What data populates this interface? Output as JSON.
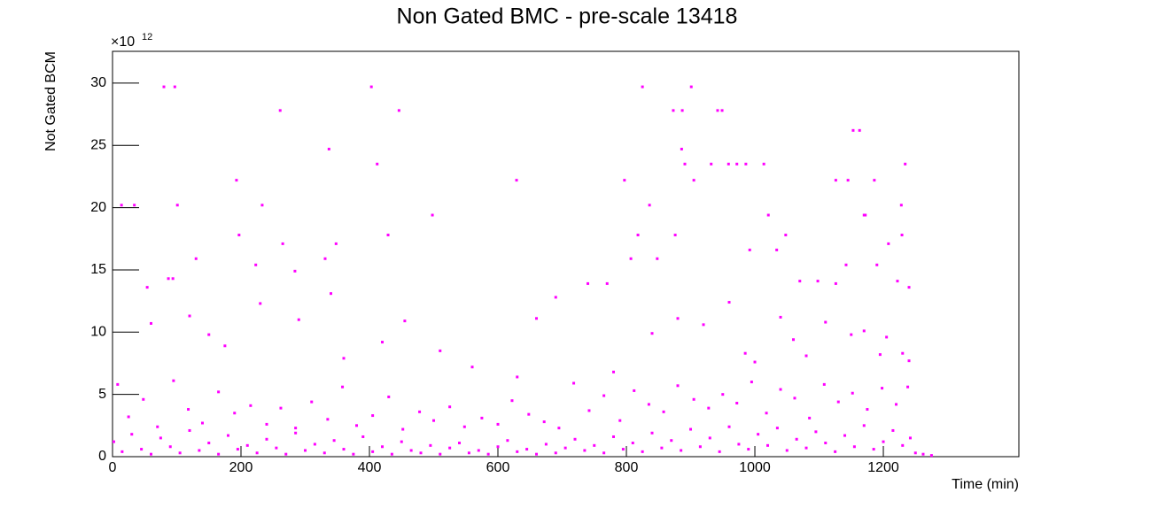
{
  "chart_data": {
    "type": "scatter",
    "title": "Non Gated BMC - pre-scale 13418",
    "x_label": "Time (min)",
    "y_label": "Not Gated BCM",
    "y_multiplier": {
      "base": "×10",
      "exponent": "12"
    },
    "xlim": [
      0,
      1411
    ],
    "xticks": [
      0,
      200,
      400,
      600,
      800,
      1000,
      1200
    ],
    "ylim": [
      0,
      32.55
    ],
    "yticks": [
      0,
      5,
      10,
      15,
      20,
      25,
      30
    ],
    "grid": false,
    "series": [
      {
        "color": "#ff00ff",
        "x": [
          80,
          97,
          403,
          825,
          901,
          261,
          446,
          873,
          887,
          942,
          949,
          1153,
          1163,
          337,
          886,
          412,
          932,
          891,
          959,
          972,
          986,
          1014,
          1234,
          193,
          629,
          797,
          905,
          1126,
          1186,
          1145,
          14,
          34,
          101,
          233,
          836,
          1228,
          1170,
          1172,
          1021,
          498,
          876,
          197,
          429,
          818,
          1208,
          265,
          348,
          1048,
          1229,
          992,
          1034,
          848,
          807,
          130,
          331,
          223,
          1142,
          1190,
          284,
          1070,
          1098,
          1126,
          1222,
          1240,
          54,
          87,
          94
        ],
        "values": [
          29.7,
          29.7,
          29.7,
          29.7,
          29.7,
          27.8,
          27.8,
          27.8,
          27.8,
          27.8,
          27.8,
          26.2,
          26.2,
          24.7,
          24.7,
          23.5,
          23.5,
          23.5,
          23.5,
          23.5,
          23.5,
          23.5,
          23.5,
          22.2,
          22.2,
          22.2,
          22.2,
          22.2,
          22.2,
          22.2,
          20.2,
          20.2,
          20.2,
          20.2,
          20.2,
          20.2,
          19.4,
          19.4,
          19.4,
          19.4,
          17.8,
          17.8,
          17.8,
          17.8,
          17.1,
          17.1,
          17.1,
          17.8,
          17.8,
          16.6,
          16.6,
          15.9,
          15.9,
          15.9,
          15.9,
          15.4,
          15.4,
          15.4,
          14.9,
          14.1,
          14.1,
          13.9,
          14.1,
          13.6,
          13.6,
          14.3,
          14.3
        ]
      },
      {
        "color": "#ff00ff",
        "x": [
          60,
          120,
          150,
          175,
          230,
          290,
          340,
          360,
          420,
          455,
          510,
          560,
          630,
          660,
          690,
          740,
          770,
          780,
          840,
          880,
          920,
          960,
          985,
          1000,
          1040,
          1060,
          1080,
          1110,
          1150,
          1170,
          1195,
          1205,
          1230,
          1240
        ],
        "values": [
          10.7,
          11.3,
          9.8,
          8.9,
          12.3,
          11.0,
          13.1,
          7.9,
          9.2,
          10.9,
          8.5,
          7.2,
          6.4,
          11.1,
          12.8,
          13.9,
          13.9,
          6.8,
          9.9,
          11.1,
          10.6,
          12.4,
          8.3,
          7.6,
          11.2,
          9.4,
          8.1,
          10.8,
          9.8,
          10.1,
          8.2,
          9.6,
          8.3,
          7.7
        ]
      },
      {
        "color": "#ff00ff",
        "x": [
          8,
          25,
          48,
          70,
          95,
          118,
          140,
          165,
          190,
          215,
          240,
          262,
          285,
          310,
          335,
          358,
          380,
          405,
          430,
          452,
          478,
          500,
          525,
          548,
          575,
          600,
          622,
          648,
          672,
          695,
          718,
          742,
          765,
          790,
          812,
          835,
          858,
          880,
          905,
          928,
          950,
          972,
          995,
          1018,
          1040,
          1062,
          1085,
          1108,
          1130,
          1152,
          1175,
          1198,
          1220,
          1238
        ],
        "values": [
          5.8,
          3.2,
          4.6,
          2.4,
          6.1,
          3.8,
          2.7,
          5.2,
          3.5,
          4.1,
          2.6,
          3.9,
          2.3,
          4.4,
          3.0,
          5.6,
          2.5,
          3.3,
          4.8,
          2.2,
          3.6,
          2.9,
          4.0,
          2.4,
          3.1,
          2.6,
          4.5,
          3.4,
          2.8,
          2.3,
          5.9,
          3.7,
          4.9,
          2.9,
          5.3,
          4.2,
          3.6,
          5.7,
          4.6,
          3.9,
          5.0,
          4.3,
          6.0,
          3.5,
          5.4,
          4.7,
          3.1,
          5.8,
          4.4,
          5.1,
          3.8,
          5.5,
          4.2,
          5.6
        ]
      },
      {
        "color": "#ff00ff",
        "x": [
          2,
          15,
          30,
          45,
          60,
          75,
          90,
          105,
          120,
          135,
          150,
          165,
          180,
          195,
          210,
          225,
          240,
          255,
          270,
          285,
          300,
          315,
          330,
          345,
          360,
          375,
          390,
          405,
          420,
          435,
          450,
          465,
          480,
          495,
          510,
          525,
          540,
          555,
          570,
          585,
          600,
          615,
          630,
          645,
          660,
          675,
          690,
          705,
          720,
          735,
          750,
          765,
          780,
          795,
          810,
          825,
          840,
          855,
          870,
          885,
          900,
          915,
          930,
          945,
          960,
          975,
          990,
          1005,
          1020,
          1035,
          1050,
          1065,
          1080,
          1095,
          1110,
          1125,
          1140,
          1155,
          1170,
          1185,
          1200,
          1215,
          1230,
          1242
        ],
        "values": [
          1.2,
          0.4,
          1.8,
          0.6,
          0.2,
          1.5,
          0.8,
          0.3,
          2.1,
          0.5,
          1.1,
          0.2,
          1.7,
          0.6,
          0.9,
          0.3,
          1.4,
          0.7,
          0.2,
          1.9,
          0.5,
          1.0,
          0.3,
          1.3,
          0.6,
          0.2,
          1.6,
          0.4,
          0.8,
          0.2,
          1.2,
          0.5,
          0.3,
          0.9,
          0.2,
          0.7,
          1.1,
          0.3,
          0.5,
          0.2,
          0.8,
          1.3,
          0.4,
          0.6,
          0.2,
          1.0,
          0.3,
          0.7,
          1.4,
          0.5,
          0.9,
          0.3,
          1.6,
          0.6,
          1.1,
          0.4,
          1.9,
          0.7,
          1.3,
          0.5,
          2.2,
          0.8,
          1.5,
          0.4,
          2.4,
          1.0,
          0.6,
          1.8,
          0.9,
          2.3,
          0.5,
          1.4,
          0.7,
          2.0,
          1.1,
          0.4,
          1.7,
          0.8,
          2.5,
          0.6,
          1.2,
          2.1,
          0.9,
          1.5
        ]
      },
      {
        "color": "#ff00ff",
        "x": [
          1250,
          1262,
          1275
        ],
        "values": [
          0.3,
          0.2,
          0.1
        ]
      }
    ]
  }
}
